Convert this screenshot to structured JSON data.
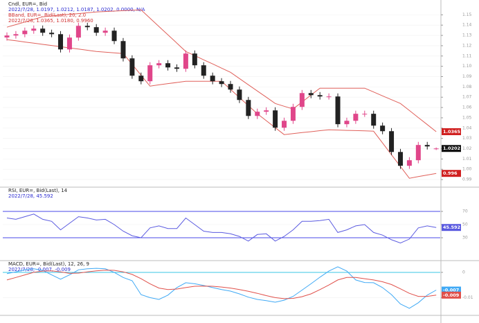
{
  "chart_data": [
    {
      "type": "candlestick",
      "title": "Cndl, EUR=, Bid",
      "legend_lines": [
        "2022/7/28, 1.0197, 1.0212, 1.0187, 1.0202, 0.0000, N/A",
        "BBand, EUR=, Bid(Last), 20, 2.0",
        "2022/7/28, 1.0365, 1.0180, 0.9960"
      ],
      "up_color": "#e0468a",
      "down_color": "#222222",
      "open": [
        1.128,
        1.1299,
        1.1312,
        1.1346,
        1.1366,
        1.1326,
        1.1312,
        1.1164,
        1.1279,
        1.1393,
        1.138,
        1.1326,
        1.1346,
        1.1245,
        1.1077,
        1.0909,
        1.0855,
        1.101,
        1.103,
        1.0989,
        1.0976,
        1.1124,
        1.101,
        1.0909,
        1.0855,
        1.0828,
        1.0774,
        1.0673,
        1.0518,
        1.0559,
        1.0572,
        1.0404,
        1.0471,
        1.0606,
        1.074,
        1.072,
        1.0707,
        1.0707,
        1.0438,
        1.0471,
        1.0539,
        1.0539,
        1.0424,
        1.037,
        1.0168,
        1.0034,
        1.0088,
        1.0236,
        1.0197
      ],
      "high": [
        1.1329,
        1.1342,
        1.1376,
        1.1396,
        1.1396,
        1.1356,
        1.1342,
        1.1309,
        1.1423,
        1.1423,
        1.141,
        1.1376,
        1.1376,
        1.1275,
        1.1107,
        1.0939,
        1.104,
        1.106,
        1.106,
        1.1019,
        1.1154,
        1.1154,
        1.104,
        1.0939,
        1.0885,
        1.0858,
        1.0804,
        1.0703,
        1.0589,
        1.0602,
        1.0602,
        1.0501,
        1.0636,
        1.077,
        1.077,
        1.075,
        1.0737,
        1.0737,
        1.0501,
        1.0569,
        1.0569,
        1.0569,
        1.0454,
        1.04,
        1.0198,
        1.0118,
        1.0266,
        1.0266,
        1.0212
      ],
      "low": [
        1.125,
        1.1269,
        1.1282,
        1.1316,
        1.1296,
        1.1282,
        1.1134,
        1.1134,
        1.1249,
        1.135,
        1.1296,
        1.1296,
        1.1215,
        1.1047,
        1.0879,
        1.0825,
        1.0825,
        1.098,
        1.0959,
        1.0946,
        1.0946,
        1.098,
        1.0879,
        1.0825,
        1.0798,
        1.0744,
        1.0643,
        1.0488,
        1.0488,
        1.0529,
        1.0374,
        1.0374,
        1.0441,
        1.0576,
        1.069,
        1.0677,
        1.0677,
        1.0408,
        1.0408,
        1.0441,
        1.0509,
        1.0394,
        1.034,
        1.0138,
        1.0004,
        1.0004,
        1.0058,
        1.0192,
        1.0187
      ],
      "close": [
        1.1299,
        1.1312,
        1.1346,
        1.1366,
        1.1326,
        1.1312,
        1.1164,
        1.1279,
        1.1393,
        1.138,
        1.1326,
        1.1346,
        1.1245,
        1.1077,
        1.0909,
        1.0855,
        1.101,
        1.103,
        1.0989,
        1.0976,
        1.1124,
        1.101,
        1.0909,
        1.0855,
        1.0828,
        1.0774,
        1.0673,
        1.0518,
        1.0559,
        1.0572,
        1.0404,
        1.0471,
        1.0606,
        1.074,
        1.072,
        1.0707,
        1.0707,
        1.0438,
        1.0471,
        1.0539,
        1.0539,
        1.0424,
        1.037,
        1.0168,
        1.0034,
        1.0088,
        1.0236,
        1.0222,
        1.0202
      ],
      "bands": [
        {
          "color": "#e0605a",
          "values": [
            1.138,
            1.1405,
            1.143,
            1.1456,
            1.1481,
            1.1489,
            1.1497,
            1.1505,
            1.1512,
            1.152,
            1.1528,
            1.1532,
            1.1536,
            1.154,
            1.1544,
            1.1548,
            1.1467,
            1.1386,
            1.1306,
            1.1225,
            1.1144,
            1.1104,
            1.1063,
            1.1023,
            1.0982,
            1.0942,
            1.0881,
            1.0821,
            1.076,
            1.07,
            1.0639,
            1.0612,
            1.0586,
            1.0653,
            1.0721,
            1.0788,
            1.0788,
            1.0788,
            1.0788,
            1.0788,
            1.0788,
            1.0751,
            1.0713,
            1.0676,
            1.0639,
            1.0571,
            1.0502,
            1.0434,
            1.0365
          ]
        },
        {
          "color": "#e0605a",
          "values": [
            1.1259,
            1.1248,
            1.1236,
            1.1225,
            1.1213,
            1.1202,
            1.119,
            1.1179,
            1.1167,
            1.1156,
            1.1144,
            1.1137,
            1.1131,
            1.1124,
            1.1019,
            1.0913,
            1.0808,
            1.082,
            1.0832,
            1.0843,
            1.0855,
            1.0855,
            1.0855,
            1.0855,
            1.0855,
            1.0776,
            1.0697,
            1.0618,
            1.0539,
            1.0472,
            1.0404,
            1.0337,
            1.0346,
            1.0356,
            1.0365,
            1.0375,
            1.0384,
            1.0381,
            1.0378,
            1.0376,
            1.0373,
            1.037,
            1.0256,
            1.0141,
            1.0027,
            0.9913,
            0.9929,
            0.9944,
            0.996
          ]
        }
      ],
      "ylim": [
        0.984,
        1.159
      ],
      "yticks": [
        0.99,
        {
          "value": 1,
          "label": "1.00"
        },
        1.01,
        1.02,
        1.03,
        1.04,
        1.05,
        1.06,
        1.07,
        1.08,
        1.09,
        {
          "value": 1.1,
          "label": "1.10"
        },
        1.11,
        1.12,
        1.13,
        1.14,
        1.15
      ]
    },
    {
      "type": "line",
      "title": "RSI, EUR=, Bid(Last), 14",
      "subtitle": "2022/7/28, 45.592",
      "series": [
        {
          "color": "#5a5ae0",
          "values": [
            60,
            58,
            62,
            66,
            58,
            55,
            42,
            52,
            62,
            60,
            57,
            58,
            50,
            40,
            33,
            30,
            45,
            48,
            44,
            44,
            60,
            50,
            40,
            38,
            38,
            36,
            32,
            25,
            35,
            36,
            25,
            32,
            42,
            55,
            55,
            56,
            58,
            38,
            42,
            48,
            50,
            38,
            34,
            27,
            22,
            28,
            45,
            48,
            45.592
          ]
        }
      ],
      "reference_lines": [
        30,
        70
      ],
      "reference_color": "#4a4ae8",
      "ylim": [
        0,
        100
      ],
      "yticks": [
        30,
        50,
        70
      ]
    },
    {
      "type": "line",
      "title": "MACD, EUR=, Bid(Last), 12, 26, 9",
      "subtitle": "2022/7/28, -0.007, -0.009",
      "series": [
        {
          "color": "#3fa9f5",
          "values": [
            -0.0005,
            0.0002,
            0.001,
            0.0014,
            0.0008,
            -0.001,
            -0.0027,
            -0.001,
            0.001,
            0.0014,
            0.0016,
            0.0014,
            0.0,
            -0.002,
            -0.0033,
            -0.0088,
            -0.01,
            -0.0107,
            -0.009,
            -0.006,
            -0.0041,
            -0.0045,
            -0.0052,
            -0.006,
            -0.0068,
            -0.0074,
            -0.0085,
            -0.0098,
            -0.0107,
            -0.0112,
            -0.0118,
            -0.011,
            -0.0095,
            -0.007,
            -0.0045,
            -0.0019,
            0.0005,
            0.0022,
            0.0005,
            -0.003,
            -0.004,
            -0.0041,
            -0.006,
            -0.0088,
            -0.0125,
            -0.0142,
            -0.012,
            -0.009,
            -0.007
          ]
        },
        {
          "color": "#e0504a",
          "values": [
            -0.003,
            -0.002,
            -0.001,
            0.0,
            0.0005,
            0.0006,
            0.0002,
            -0.0004,
            -0.0003,
            0.0002,
            0.0006,
            0.0009,
            0.0008,
            0.0002,
            -0.0008,
            -0.0025,
            -0.0045,
            -0.0062,
            -0.0068,
            -0.0066,
            -0.006,
            -0.0055,
            -0.0054,
            -0.0055,
            -0.0058,
            -0.0062,
            -0.0068,
            -0.0075,
            -0.0083,
            -0.0092,
            -0.01,
            -0.0104,
            -0.0103,
            -0.0096,
            -0.0085,
            -0.0068,
            -0.005,
            -0.003,
            -0.002,
            -0.002,
            -0.0025,
            -0.003,
            -0.0037,
            -0.0048,
            -0.0065,
            -0.0083,
            -0.0095,
            -0.0095,
            -0.009
          ]
        }
      ],
      "reference_lines": [
        0
      ],
      "reference_color": "#39c6e6",
      "ylim": [
        -0.017,
        0.003
      ],
      "yticks": [
        -0.01,
        0
      ]
    }
  ]
}
